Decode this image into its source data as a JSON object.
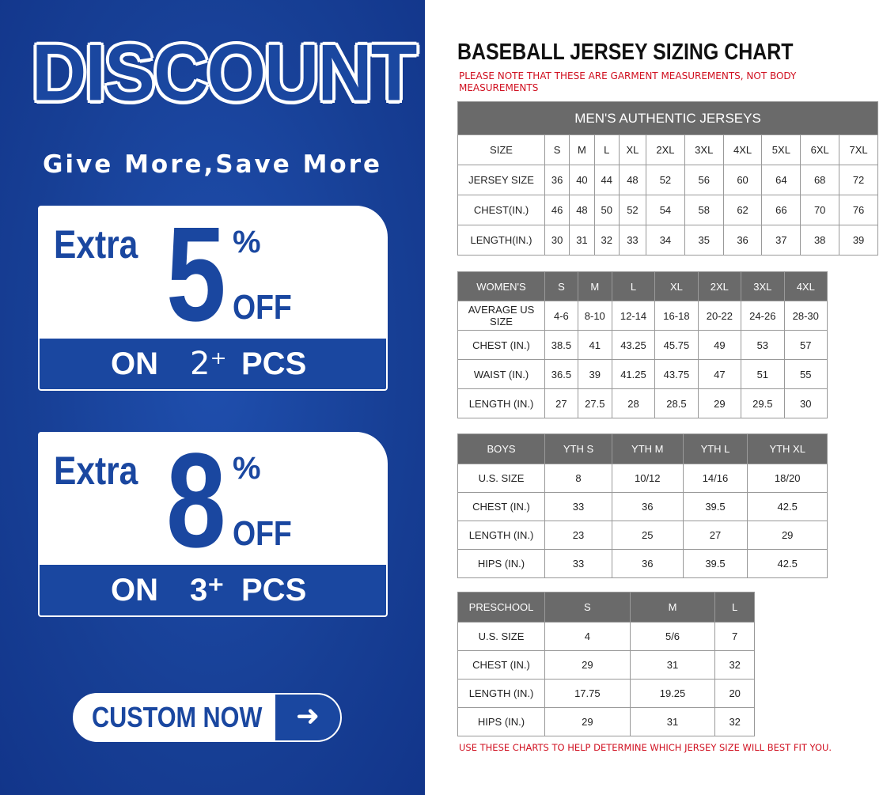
{
  "promo": {
    "headline": "DISCOUNT",
    "tagline": "Give More,Save More",
    "offers": [
      {
        "extra": "Extra",
        "value": "5",
        "percent": "%",
        "off": "OFF",
        "on": "ON",
        "qty": "2⁺",
        "pcs": "PCS"
      },
      {
        "extra": "Extra",
        "value": "8",
        "percent": "%",
        "off": "OFF",
        "on": "ON",
        "qty": "3⁺",
        "pcs": "PCS"
      }
    ],
    "cta": "CUSTOM NOW",
    "cta_icon": "arrow-right-icon",
    "colors": {
      "brand_blue": "#1a47a0",
      "note_red": "#d01020",
      "header_gray": "#6a6a6a"
    }
  },
  "chart": {
    "title": "BASEBALL JERSEY SIZING CHART",
    "note": "PLEASE NOTE THAT THESE ARE GARMENT MEASUREMENTS, NOT BODY MEASUREMENTS",
    "footer": "USE THESE CHARTS TO HELP DETERMINE WHICH JERSEY SIZE WILL BEST FIT YOU.",
    "mens": {
      "caption": "MEN'S AUTHENTIC JERSEYS",
      "rows": [
        [
          "SIZE",
          "S",
          "M",
          "L",
          "XL",
          "2XL",
          "3XL",
          "4XL",
          "5XL",
          "6XL",
          "7XL"
        ],
        [
          "JERSEY SIZE",
          "36",
          "40",
          "44",
          "48",
          "52",
          "56",
          "60",
          "64",
          "68",
          "72"
        ],
        [
          "CHEST(IN.)",
          "46",
          "48",
          "50",
          "52",
          "54",
          "58",
          "62",
          "66",
          "70",
          "76"
        ],
        [
          "LENGTH(IN.)",
          "30",
          "31",
          "32",
          "33",
          "34",
          "35",
          "36",
          "37",
          "38",
          "39"
        ]
      ]
    },
    "womens": {
      "header": [
        "WOMEN'S",
        "S",
        "M",
        "L",
        "XL",
        "2XL",
        "3XL",
        "4XL"
      ],
      "rows": [
        [
          "AVERAGE US SIZE",
          "4-6",
          "8-10",
          "12-14",
          "16-18",
          "20-22",
          "24-26",
          "28-30"
        ],
        [
          "CHEST (IN.)",
          "38.5",
          "41",
          "43.25",
          "45.75",
          "49",
          "53",
          "57"
        ],
        [
          "WAIST (IN.)",
          "36.5",
          "39",
          "41.25",
          "43.75",
          "47",
          "51",
          "55"
        ],
        [
          "LENGTH (IN.)",
          "27",
          "27.5",
          "28",
          "28.5",
          "29",
          "29.5",
          "30"
        ]
      ]
    },
    "boys": {
      "header": [
        "BOYS",
        "YTH S",
        "YTH M",
        "YTH L",
        "YTH XL"
      ],
      "rows": [
        [
          "U.S. SIZE",
          "8",
          "10/12",
          "14/16",
          "18/20"
        ],
        [
          "CHEST (IN.)",
          "33",
          "36",
          "39.5",
          "42.5"
        ],
        [
          "LENGTH (IN.)",
          "23",
          "25",
          "27",
          "29"
        ],
        [
          "HIPS (IN.)",
          "33",
          "36",
          "39.5",
          "42.5"
        ]
      ]
    },
    "preschool": {
      "header": [
        "PRESCHOOL",
        "S",
        "M",
        "L"
      ],
      "rows": [
        [
          "U.S. SIZE",
          "4",
          "5/6",
          "7"
        ],
        [
          "CHEST (IN.)",
          "29",
          "31",
          "32"
        ],
        [
          "LENGTH (IN.)",
          "17.75",
          "19.25",
          "20"
        ],
        [
          "HIPS (IN.)",
          "29",
          "31",
          "32"
        ]
      ]
    }
  }
}
